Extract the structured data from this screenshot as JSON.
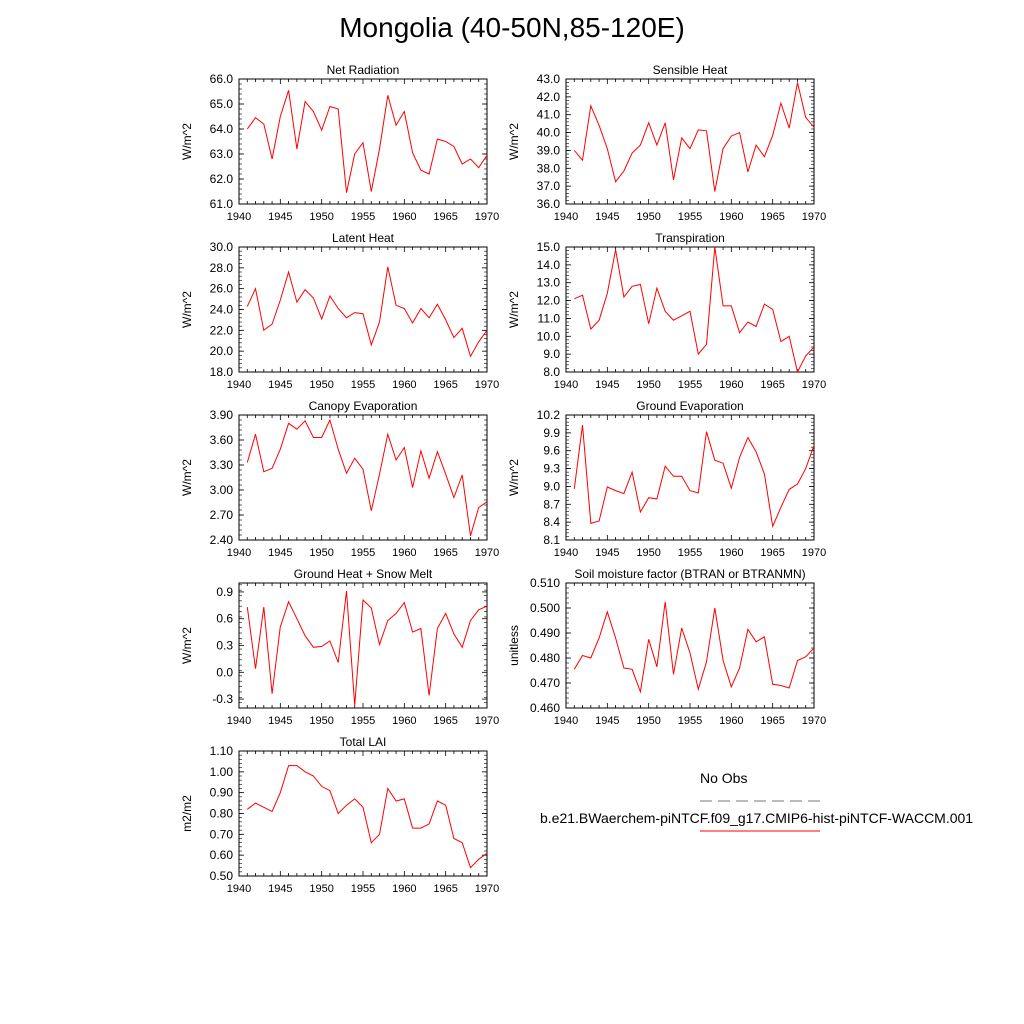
{
  "title": "Mongolia (40-50N,85-120E)",
  "legend": {
    "obs_label": "No Obs",
    "case_label": "b.e21.BWaerchem-piNTCF.f09_g17.CMIP6-hist-piNTCF-WACCM.001",
    "obs_style": "dashed-gray",
    "case_color": "#ff0000"
  },
  "chart_data": [
    {
      "type": "line",
      "title": "Net Radiation",
      "ylabel": "W/m^2",
      "xlim": [
        1940,
        1970
      ],
      "ylim": [
        61.0,
        66.0
      ],
      "xticks": [
        "1940",
        "1945",
        "1950",
        "1955",
        "1960",
        "1965",
        "1970"
      ],
      "yticks": [
        "61.0",
        "62.0",
        "63.0",
        "64.0",
        "65.0",
        "66.0"
      ],
      "x": [
        1941,
        1942,
        1943,
        1944,
        1945,
        1946,
        1947,
        1948,
        1949,
        1950,
        1951,
        1952,
        1953,
        1954,
        1955,
        1956,
        1957,
        1958,
        1959,
        1960,
        1961,
        1962,
        1963,
        1964,
        1965,
        1966,
        1967,
        1968,
        1969,
        1970
      ],
      "series": [
        {
          "color": "#ff0000",
          "values": [
            64.0,
            64.45,
            64.2,
            62.8,
            64.5,
            65.55,
            63.2,
            65.1,
            64.7,
            63.95,
            64.9,
            64.8,
            61.45,
            63.0,
            63.45,
            61.5,
            63.2,
            65.35,
            64.15,
            64.7,
            63.05,
            62.35,
            62.2,
            63.6,
            63.5,
            63.3,
            62.6,
            62.8,
            62.45,
            62.95
          ]
        }
      ]
    },
    {
      "type": "line",
      "title": "Sensible Heat",
      "ylabel": "W/m^2",
      "xlim": [
        1940,
        1970
      ],
      "ylim": [
        36.0,
        43.0
      ],
      "xticks": [
        "1940",
        "1945",
        "1950",
        "1955",
        "1960",
        "1965",
        "1970"
      ],
      "yticks": [
        "36.0",
        "37.0",
        "38.0",
        "39.0",
        "40.0",
        "41.0",
        "42.0",
        "43.0"
      ],
      "x": [
        1941,
        1942,
        1943,
        1944,
        1945,
        1946,
        1947,
        1948,
        1949,
        1950,
        1951,
        1952,
        1953,
        1954,
        1955,
        1956,
        1957,
        1958,
        1959,
        1960,
        1961,
        1962,
        1963,
        1964,
        1965,
        1966,
        1967,
        1968,
        1969,
        1970
      ],
      "series": [
        {
          "color": "#ff0000",
          "values": [
            39.0,
            38.45,
            41.5,
            40.4,
            39.1,
            37.25,
            37.85,
            38.85,
            39.3,
            40.55,
            39.3,
            40.55,
            37.35,
            39.7,
            39.1,
            40.15,
            40.1,
            36.7,
            39.1,
            39.8,
            40.0,
            37.8,
            39.3,
            38.65,
            39.85,
            41.65,
            40.25,
            42.8,
            40.85,
            40.3
          ]
        }
      ]
    },
    {
      "type": "line",
      "title": "Latent Heat",
      "ylabel": "W/m^2",
      "xlim": [
        1940,
        1970
      ],
      "ylim": [
        18.0,
        30.0
      ],
      "xticks": [
        "1940",
        "1945",
        "1950",
        "1955",
        "1960",
        "1965",
        "1970"
      ],
      "yticks": [
        "18.0",
        "20.0",
        "22.0",
        "24.0",
        "26.0",
        "28.0",
        "30.0"
      ],
      "x": [
        1941,
        1942,
        1943,
        1944,
        1945,
        1946,
        1947,
        1948,
        1949,
        1950,
        1951,
        1952,
        1953,
        1954,
        1955,
        1956,
        1957,
        1958,
        1959,
        1960,
        1961,
        1962,
        1963,
        1964,
        1965,
        1966,
        1967,
        1968,
        1969,
        1970
      ],
      "series": [
        {
          "color": "#ff0000",
          "values": [
            24.3,
            26.0,
            22.0,
            22.6,
            24.9,
            27.6,
            24.7,
            25.9,
            25.1,
            23.1,
            25.3,
            24.1,
            23.2,
            23.7,
            23.6,
            20.6,
            22.8,
            28.1,
            24.4,
            24.1,
            22.7,
            24.1,
            23.2,
            24.5,
            23.0,
            21.3,
            22.2,
            19.5,
            20.9,
            22.0
          ]
        }
      ]
    },
    {
      "type": "line",
      "title": "Transpiration",
      "ylabel": "W/m^2",
      "xlim": [
        1940,
        1970
      ],
      "ylim": [
        8.0,
        15.0
      ],
      "xticks": [
        "1940",
        "1945",
        "1950",
        "1955",
        "1960",
        "1965",
        "1970"
      ],
      "yticks": [
        "8.0",
        "9.0",
        "10.0",
        "11.0",
        "12.0",
        "13.0",
        "14.0",
        "15.0"
      ],
      "x": [
        1941,
        1942,
        1943,
        1944,
        1945,
        1946,
        1947,
        1948,
        1949,
        1950,
        1951,
        1952,
        1953,
        1954,
        1955,
        1956,
        1957,
        1958,
        1959,
        1960,
        1961,
        1962,
        1963,
        1964,
        1965,
        1966,
        1967,
        1968,
        1969,
        1970
      ],
      "series": [
        {
          "color": "#ff0000",
          "values": [
            12.1,
            12.3,
            10.4,
            10.9,
            12.4,
            14.85,
            12.2,
            12.8,
            12.9,
            10.7,
            12.7,
            11.4,
            10.9,
            11.15,
            11.4,
            9.0,
            9.55,
            15.0,
            11.7,
            11.7,
            10.2,
            10.8,
            10.55,
            11.8,
            11.5,
            9.7,
            10.0,
            8.0,
            8.9,
            9.4
          ]
        }
      ]
    },
    {
      "type": "line",
      "title": "Canopy Evaporation",
      "ylabel": "W/m^2",
      "xlim": [
        1940,
        1970
      ],
      "ylim": [
        2.4,
        3.9
      ],
      "xticks": [
        "1940",
        "1945",
        "1950",
        "1955",
        "1960",
        "1965",
        "1970"
      ],
      "yticks": [
        "2.40",
        "2.70",
        "3.00",
        "3.30",
        "3.60",
        "3.90"
      ],
      "x": [
        1941,
        1942,
        1943,
        1944,
        1945,
        1946,
        1947,
        1948,
        1949,
        1950,
        1951,
        1952,
        1953,
        1954,
        1955,
        1956,
        1957,
        1958,
        1959,
        1960,
        1961,
        1962,
        1963,
        1964,
        1965,
        1966,
        1967,
        1968,
        1969,
        1970
      ],
      "series": [
        {
          "color": "#ff0000",
          "values": [
            3.33,
            3.67,
            3.22,
            3.26,
            3.49,
            3.8,
            3.73,
            3.83,
            3.63,
            3.63,
            3.84,
            3.49,
            3.2,
            3.38,
            3.25,
            2.75,
            3.19,
            3.67,
            3.36,
            3.51,
            3.03,
            3.47,
            3.14,
            3.46,
            3.19,
            2.91,
            3.18,
            2.45,
            2.79,
            2.86
          ]
        }
      ]
    },
    {
      "type": "line",
      "title": "Ground Evaporation",
      "ylabel": "W/m^2",
      "xlim": [
        1940,
        1970
      ],
      "ylim": [
        8.1,
        10.2
      ],
      "xticks": [
        "1940",
        "1945",
        "1950",
        "1955",
        "1960",
        "1965",
        "1970"
      ],
      "yticks": [
        "8.1",
        "8.4",
        "8.7",
        "9.0",
        "9.3",
        "9.6",
        "9.9",
        "10.2"
      ],
      "x": [
        1941,
        1942,
        1943,
        1944,
        1945,
        1946,
        1947,
        1948,
        1949,
        1950,
        1951,
        1952,
        1953,
        1954,
        1955,
        1956,
        1957,
        1958,
        1959,
        1960,
        1961,
        1962,
        1963,
        1964,
        1965,
        1966,
        1967,
        1968,
        1969,
        1970
      ],
      "series": [
        {
          "color": "#ff0000",
          "values": [
            8.96,
            10.03,
            8.38,
            8.42,
            8.99,
            8.93,
            8.88,
            9.24,
            8.57,
            8.81,
            8.79,
            9.34,
            9.17,
            9.17,
            8.93,
            8.89,
            9.92,
            9.44,
            9.39,
            8.97,
            9.49,
            9.82,
            9.58,
            9.21,
            8.33,
            8.65,
            8.95,
            9.04,
            9.3,
            9.69
          ]
        }
      ]
    },
    {
      "type": "line",
      "title": "Ground Heat + Snow Melt",
      "ylabel": "W/m^2",
      "xlim": [
        1940,
        1970
      ],
      "ylim": [
        -0.4,
        1.0
      ],
      "xticks": [
        "1940",
        "1945",
        "1950",
        "1955",
        "1960",
        "1965",
        "1970"
      ],
      "yticks": [
        "-0.3",
        "0.0",
        "0.3",
        "0.6",
        "0.9"
      ],
      "ytick_values": [
        -0.3,
        0.0,
        0.3,
        0.6,
        0.9
      ],
      "x": [
        1941,
        1942,
        1943,
        1944,
        1945,
        1946,
        1947,
        1948,
        1949,
        1950,
        1951,
        1952,
        1953,
        1954,
        1955,
        1956,
        1957,
        1958,
        1959,
        1960,
        1961,
        1962,
        1963,
        1964,
        1965,
        1966,
        1967,
        1968,
        1969,
        1970
      ],
      "series": [
        {
          "color": "#ff0000",
          "values": [
            0.73,
            0.04,
            0.73,
            -0.24,
            0.51,
            0.79,
            0.6,
            0.41,
            0.28,
            0.29,
            0.35,
            0.11,
            0.91,
            -0.37,
            0.81,
            0.72,
            0.31,
            0.58,
            0.66,
            0.78,
            0.45,
            0.49,
            -0.26,
            0.49,
            0.66,
            0.43,
            0.28,
            0.58,
            0.7,
            0.74
          ]
        }
      ]
    },
    {
      "type": "line",
      "title": "Soil moisture factor (BTRAN or BTRANMN)",
      "ylabel": "unitless",
      "xlim": [
        1940,
        1970
      ],
      "ylim": [
        0.46,
        0.51
      ],
      "xticks": [
        "1940",
        "1945",
        "1950",
        "1955",
        "1960",
        "1965",
        "1970"
      ],
      "yticks": [
        "0.460",
        "0.470",
        "0.480",
        "0.490",
        "0.500",
        "0.510"
      ],
      "x": [
        1941,
        1942,
        1943,
        1944,
        1945,
        1946,
        1947,
        1948,
        1949,
        1950,
        1951,
        1952,
        1953,
        1954,
        1955,
        1956,
        1957,
        1958,
        1959,
        1960,
        1961,
        1962,
        1963,
        1964,
        1965,
        1966,
        1967,
        1968,
        1969,
        1970
      ],
      "series": [
        {
          "color": "#ff0000",
          "values": [
            0.4755,
            0.481,
            0.48,
            0.488,
            0.4985,
            0.488,
            0.476,
            0.4755,
            0.4665,
            0.4875,
            0.4765,
            0.5025,
            0.4735,
            0.492,
            0.482,
            0.4675,
            0.4785,
            0.5,
            0.479,
            0.4685,
            0.476,
            0.4915,
            0.4865,
            0.4885,
            0.4695,
            0.469,
            0.468,
            0.479,
            0.4805,
            0.484
          ]
        }
      ]
    },
    {
      "type": "line",
      "title": "Total LAI",
      "ylabel": "m2/m2",
      "xlim": [
        1940,
        1970
      ],
      "ylim": [
        0.5,
        1.1
      ],
      "xticks": [
        "1940",
        "1945",
        "1950",
        "1955",
        "1960",
        "1965",
        "1970"
      ],
      "yticks": [
        "0.50",
        "0.60",
        "0.70",
        "0.80",
        "0.90",
        "1.00",
        "1.10"
      ],
      "x": [
        1941,
        1942,
        1943,
        1944,
        1945,
        1946,
        1947,
        1948,
        1949,
        1950,
        1951,
        1952,
        1953,
        1954,
        1955,
        1956,
        1957,
        1958,
        1959,
        1960,
        1961,
        1962,
        1963,
        1964,
        1965,
        1966,
        1967,
        1968,
        1969,
        1970
      ],
      "series": [
        {
          "color": "#ff0000",
          "values": [
            0.82,
            0.85,
            0.83,
            0.81,
            0.9,
            1.03,
            1.03,
            1.0,
            0.98,
            0.93,
            0.91,
            0.8,
            0.84,
            0.87,
            0.83,
            0.66,
            0.7,
            0.92,
            0.86,
            0.87,
            0.73,
            0.73,
            0.75,
            0.86,
            0.84,
            0.68,
            0.66,
            0.54,
            0.58,
            0.61
          ]
        }
      ]
    }
  ]
}
